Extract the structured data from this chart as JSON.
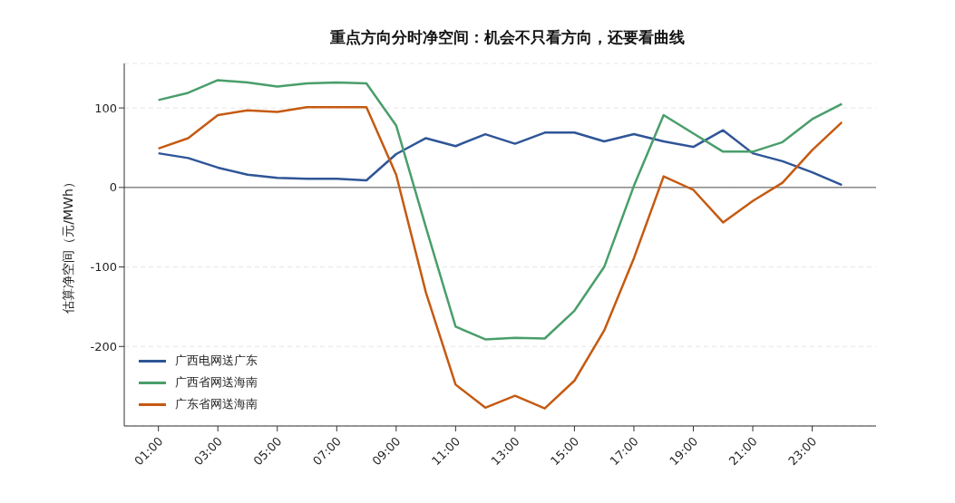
{
  "chart_data": {
    "type": "line",
    "title": "重点方向分时净空间：机会不只看方向，还要看曲线",
    "ylabel": "估算净空间（元/MWh）",
    "x": [
      1,
      2,
      3,
      4,
      5,
      6,
      7,
      8,
      9,
      10,
      11,
      12,
      13,
      14,
      15,
      16,
      17,
      18,
      19,
      20,
      21,
      22,
      23,
      24
    ],
    "xlim": [
      -0.15,
      25.15
    ],
    "xticks": [
      {
        "value": 1,
        "label": "01:00"
      },
      {
        "value": 3,
        "label": "03:00"
      },
      {
        "value": 5,
        "label": "05:00"
      },
      {
        "value": 7,
        "label": "07:00"
      },
      {
        "value": 9,
        "label": "09:00"
      },
      {
        "value": 11,
        "label": "11:00"
      },
      {
        "value": 13,
        "label": "13:00"
      },
      {
        "value": 15,
        "label": "15:00"
      },
      {
        "value": 17,
        "label": "17:00"
      },
      {
        "value": 19,
        "label": "19:00"
      },
      {
        "value": 21,
        "label": "21:00"
      },
      {
        "value": 23,
        "label": "23:00"
      }
    ],
    "ylim": [
      -300,
      156
    ],
    "yticks": [
      -200,
      -100,
      0,
      100
    ],
    "series": [
      {
        "name": "广西电网送广东",
        "color": "#2f5597",
        "values": [
          43,
          37,
          25,
          16,
          12,
          11,
          11,
          9,
          42,
          62,
          52,
          67,
          55,
          69,
          69,
          58,
          67,
          58,
          51,
          72,
          43,
          33,
          19,
          3
        ]
      },
      {
        "name": "广西省网送海南",
        "color": "#4a9e6b",
        "values": [
          110,
          119,
          135,
          132,
          127,
          131,
          132,
          131,
          78,
          -50,
          -175,
          -191,
          -189,
          -190,
          -155,
          -100,
          2,
          91,
          68,
          45,
          45,
          57,
          86,
          105
        ]
      },
      {
        "name": "广东省网送海南",
        "color": "#c55a11",
        "values": [
          49,
          62,
          91,
          97,
          95,
          101,
          101,
          101,
          16,
          -132,
          -248,
          -277,
          -262,
          -278,
          -243,
          -180,
          -89,
          14,
          -3,
          -44,
          -17,
          6,
          47,
          82
        ]
      }
    ],
    "ref_lines": [
      {
        "axis": "y",
        "value": 0,
        "color": "#888888"
      }
    ],
    "grid": "y",
    "legend": "bottom left",
    "marker": "none",
    "line_style": "solid"
  }
}
